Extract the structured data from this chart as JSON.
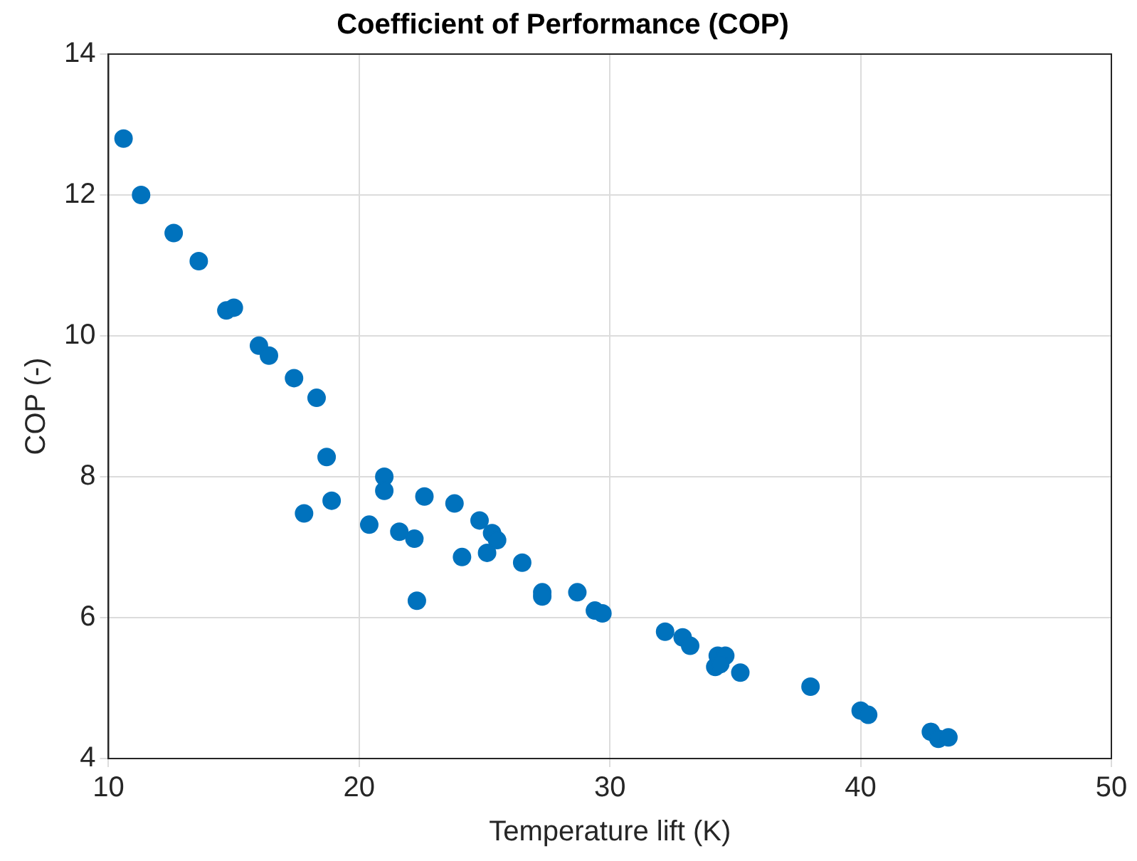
{
  "chart_data": {
    "type": "scatter",
    "title": "Coefficient of Performance (COP)",
    "xlabel": "Temperature lift (K)",
    "ylabel": "COP (-)",
    "x": [
      10.6,
      11.3,
      12.6,
      13.6,
      14.7,
      15.0,
      16.0,
      16.4,
      17.4,
      18.3,
      18.7,
      18.9,
      17.8,
      20.4,
      21.0,
      21.0,
      21.6,
      22.2,
      22.3,
      22.6,
      23.8,
      24.1,
      24.8,
      25.3,
      25.5,
      25.1,
      26.5,
      27.3,
      27.3,
      28.7,
      29.4,
      29.7,
      32.2,
      32.9,
      33.2,
      34.3,
      34.6,
      34.2,
      34.4,
      35.2,
      38.0,
      40.0,
      40.3,
      42.8,
      43.1,
      43.5
    ],
    "series": [
      {
        "color": "#0072bd",
        "values": [
          12.8,
          12.0,
          11.46,
          11.06,
          10.36,
          10.4,
          9.86,
          9.72,
          9.4,
          9.12,
          8.28,
          7.66,
          7.48,
          7.32,
          8.0,
          7.8,
          7.22,
          7.12,
          6.24,
          7.72,
          7.62,
          6.86,
          7.38,
          7.2,
          7.1,
          6.92,
          6.78,
          6.36,
          6.3,
          6.36,
          6.1,
          6.06,
          5.8,
          5.72,
          5.6,
          5.46,
          5.46,
          5.3,
          5.34,
          5.22,
          5.02,
          4.68,
          4.62,
          4.38,
          4.28,
          4.3
        ]
      }
    ],
    "xlim": [
      10,
      50
    ],
    "xticks": [
      10,
      20,
      30,
      40,
      50
    ],
    "ylim": [
      4,
      14
    ],
    "yticks": [
      4,
      6,
      8,
      10,
      12,
      14
    ],
    "grid": true,
    "marker": "circle",
    "legend": false
  }
}
